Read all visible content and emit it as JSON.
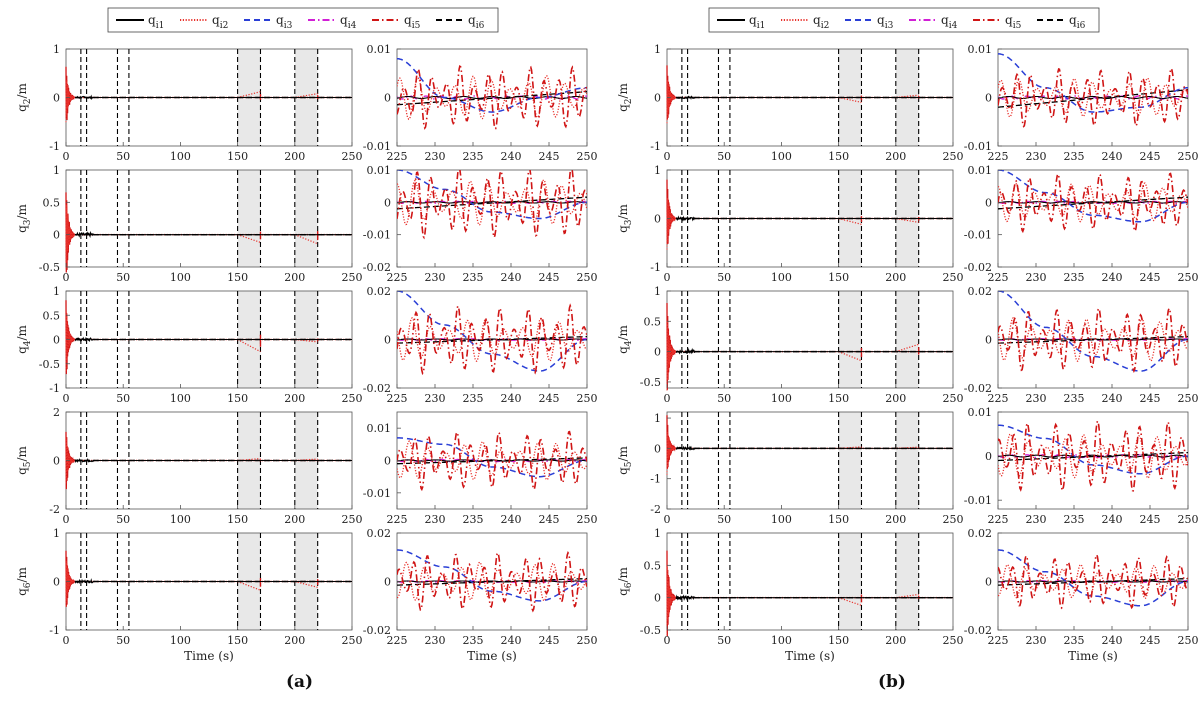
{
  "figure": {
    "panel_labels": [
      "(a)",
      "(b)"
    ],
    "colors": {
      "q_i1": "#000000",
      "q_i2": "#e8322c",
      "q_i3": "#2a3fd6",
      "q_i4": "#d11fd6",
      "q_i5": "#d01515",
      "q_i6": "#000000",
      "shade": "#e8e8e8",
      "axis": "#555555"
    }
  },
  "legend": {
    "entries": [
      {
        "key": "q_i1",
        "label": "q",
        "sub": "i1",
        "style": "solid"
      },
      {
        "key": "q_i2",
        "label": "q",
        "sub": "i2",
        "style": "dotted"
      },
      {
        "key": "q_i3",
        "label": "q",
        "sub": "i3",
        "style": "dashed"
      },
      {
        "key": "q_i4",
        "label": "q",
        "sub": "i4",
        "style": "dashdot"
      },
      {
        "key": "q_i5",
        "label": "q",
        "sub": "i5",
        "style": "dashdot"
      },
      {
        "key": "q_i6",
        "label": "q",
        "sub": "i6",
        "style": "dashed"
      }
    ]
  },
  "chart_data": {
    "type": "line",
    "xlabel": "Time (s)",
    "full_view": {
      "xlim": [
        0,
        250
      ],
      "xticks": [
        0,
        50,
        100,
        150,
        200,
        250
      ],
      "event_lines": [
        13,
        18,
        45,
        55,
        150,
        170,
        200,
        220
      ],
      "shaded_intervals": [
        [
          150,
          170
        ],
        [
          200,
          220
        ]
      ]
    },
    "zoom_view": {
      "xlim": [
        225,
        250
      ],
      "xticks": [
        225,
        230,
        235,
        240,
        245,
        250
      ]
    },
    "series_styles": {
      "q_i1": "solid",
      "q_i2": "dotted",
      "q_i3": "dashed",
      "q_i4": "dashdot",
      "q_i5": "dashdot",
      "q_i6": "dashed"
    },
    "panels": [
      {
        "label": "(a)",
        "rows": [
          {
            "ylabel": "q",
            "ysub": "2",
            "yunit": "/m",
            "full": {
              "ylim": [
                -1,
                1
              ],
              "yticks": [
                "1",
                "0",
                "-1"
              ],
              "transient": 0.75,
              "ramp": [
                0.12,
                0.08
              ]
            },
            "zoom": {
              "ylim": [
                -0.01,
                0.01
              ],
              "yticks": [
                "0.01",
                "0",
                "-0.01"
              ],
              "q_i3": [
                0.008,
                0.0,
                -0.003,
                0.0,
                0.002
              ],
              "osc_amp": 0.0065,
              "q_i2_amp": 0.0045,
              "q_i6_start": -0.0015
            }
          },
          {
            "ylabel": "q",
            "ysub": "3",
            "yunit": "/m",
            "full": {
              "ylim": [
                -0.5,
                1
              ],
              "yticks": [
                "1",
                "0.5",
                "0",
                "-0.5"
              ],
              "transient": 0.9,
              "ramp": [
                -0.12,
                -0.14
              ]
            },
            "zoom": {
              "ylim": [
                -0.02,
                0.01
              ],
              "yticks": [
                "0.01",
                "0",
                "-0.01",
                "-0.02"
              ],
              "q_i3": [
                0.01,
                0.004,
                -0.003,
                -0.005,
                0.0
              ],
              "osc_amp": 0.011,
              "q_i2_amp": 0.007,
              "q_i6_start": -0.002
            }
          },
          {
            "ylabel": "q",
            "ysub": "4",
            "yunit": "/m",
            "full": {
              "ylim": [
                -1,
                1
              ],
              "yticks": [
                "1",
                "0.5",
                "0",
                "-0.5",
                "-1"
              ],
              "transient": 0.95,
              "ramp": [
                -0.25,
                -0.05
              ]
            },
            "zoom": {
              "ylim": [
                -0.02,
                0.02
              ],
              "yticks": [
                "0.02",
                "0",
                "-0.02"
              ],
              "q_i3": [
                0.02,
                0.006,
                -0.006,
                -0.013,
                0.0
              ],
              "osc_amp": 0.014,
              "q_i2_amp": 0.009,
              "q_i6_start": -0.0015
            }
          },
          {
            "ylabel": "q",
            "ysub": "5",
            "yunit": "/m",
            "full": {
              "ylim": [
                -2,
                2
              ],
              "yticks": [
                "2",
                "0",
                "-2"
              ],
              "transient": 1.6,
              "ramp": [
                0.08,
                0.06
              ]
            },
            "zoom": {
              "ylim": [
                -0.015,
                0.015
              ],
              "yticks": [
                "0.01",
                "0",
                "-0.01"
              ],
              "q_i3": [
                0.007,
                0.005,
                -0.002,
                -0.005,
                0.0
              ],
              "osc_amp": 0.009,
              "q_i2_amp": 0.006,
              "q_i6_start": -0.001
            }
          },
          {
            "ylabel": "q",
            "ysub": "6",
            "yunit": "/m",
            "full": {
              "ylim": [
                -1,
                1
              ],
              "yticks": [
                "1",
                "0",
                "-1"
              ],
              "transient": 0.8,
              "ramp": [
                -0.18,
                -0.12
              ]
            },
            "zoom": {
              "ylim": [
                -0.02,
                0.02
              ],
              "yticks": [
                "0.02",
                "0",
                "-0.02"
              ],
              "q_i3": [
                0.013,
                0.006,
                -0.004,
                -0.008,
                0.0
              ],
              "osc_amp": 0.012,
              "q_i2_amp": 0.008,
              "q_i6_start": -0.0015
            }
          }
        ]
      },
      {
        "label": "(b)",
        "rows": [
          {
            "ylabel": "q",
            "ysub": "2",
            "yunit": "/m",
            "full": {
              "ylim": [
                -1,
                1
              ],
              "yticks": [
                "1",
                "0",
                "-1"
              ],
              "transient": 0.75,
              "ramp": [
                -0.1,
                0.05
              ]
            },
            "zoom": {
              "ylim": [
                -0.01,
                0.01
              ],
              "yticks": [
                "0.01",
                "0",
                "-0.01"
              ],
              "q_i3": [
                0.009,
                0.002,
                -0.003,
                -0.002,
                0.002
              ],
              "osc_amp": 0.006,
              "q_i2_amp": 0.004,
              "q_i6_start": -0.002
            }
          },
          {
            "ylabel": "q",
            "ysub": "3",
            "yunit": "/m",
            "full": {
              "ylim": [
                -1,
                1
              ],
              "yticks": [
                "1",
                "0",
                "-1"
              ],
              "transient": 0.9,
              "ramp": [
                -0.12,
                -0.08
              ]
            },
            "zoom": {
              "ylim": [
                -0.02,
                0.01
              ],
              "yticks": [
                "0.01",
                "0",
                "-0.01",
                "-0.02"
              ],
              "q_i3": [
                0.01,
                0.003,
                -0.004,
                -0.006,
                0.0
              ],
              "osc_amp": 0.009,
              "q_i2_amp": 0.006,
              "q_i6_start": -0.002
            }
          },
          {
            "ylabel": "q",
            "ysub": "4",
            "yunit": "/m",
            "full": {
              "ylim": [
                -0.6,
                1
              ],
              "yticks": [
                "1",
                "0.5",
                "0",
                "-0.5"
              ],
              "transient": 0.9,
              "ramp": [
                -0.15,
                0.12
              ]
            },
            "zoom": {
              "ylim": [
                -0.02,
                0.02
              ],
              "yticks": [
                "0.02",
                "0",
                "-0.02"
              ],
              "q_i3": [
                0.02,
                0.005,
                -0.007,
                -0.013,
                0.0
              ],
              "osc_amp": 0.013,
              "q_i2_amp": 0.009,
              "q_i6_start": -0.0015
            }
          },
          {
            "ylabel": "q",
            "ysub": "5",
            "yunit": "/m",
            "full": {
              "ylim": [
                -2,
                1.2
              ],
              "yticks": [
                "1",
                "0",
                "-1",
                "-2"
              ],
              "transient": 1.2,
              "ramp": [
                0.05,
                0.04
              ]
            },
            "zoom": {
              "ylim": [
                -0.012,
                0.01
              ],
              "yticks": [
                "0.01",
                "0",
                "-0.01"
              ],
              "q_i3": [
                0.007,
                0.004,
                -0.002,
                -0.004,
                0.0
              ],
              "osc_amp": 0.008,
              "q_i2_amp": 0.005,
              "q_i6_start": -0.001
            }
          },
          {
            "ylabel": "q",
            "ysub": "6",
            "yunit": "/m",
            "full": {
              "ylim": [
                -0.5,
                1
              ],
              "yticks": [
                "1",
                "0.5",
                "0",
                "-0.5"
              ],
              "transient": 0.8,
              "ramp": [
                -0.12,
                0.05
              ]
            },
            "zoom": {
              "ylim": [
                -0.02,
                0.02
              ],
              "yticks": [
                "0.02",
                "0",
                "-0.02"
              ],
              "q_i3": [
                0.013,
                0.004,
                -0.006,
                -0.01,
                0.0
              ],
              "osc_amp": 0.011,
              "q_i2_amp": 0.007,
              "q_i6_start": -0.0015
            }
          }
        ]
      }
    ]
  }
}
